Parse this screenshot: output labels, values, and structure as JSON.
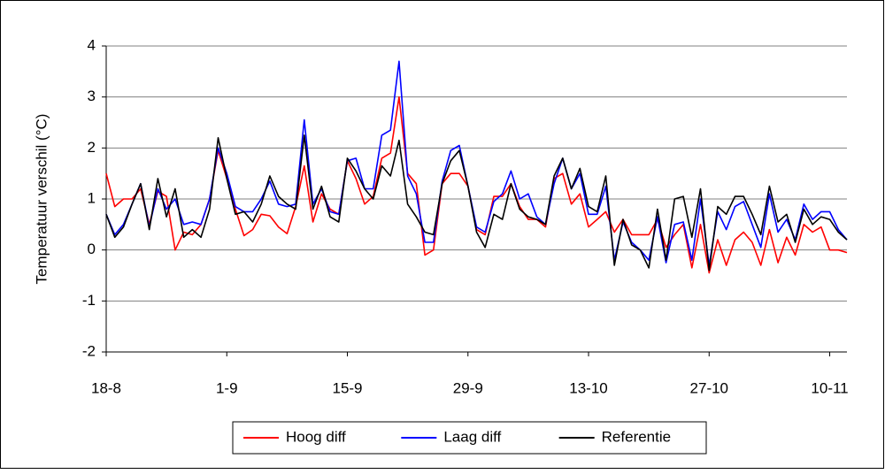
{
  "chart_data": {
    "type": "line",
    "y_label": "Temperatuur verschil (°C)",
    "categories": [
      "18-8",
      null,
      null,
      null,
      null,
      null,
      null,
      null,
      null,
      null,
      null,
      null,
      null,
      null,
      "1-9",
      null,
      null,
      null,
      null,
      null,
      null,
      null,
      null,
      null,
      null,
      null,
      null,
      null,
      "15-9",
      null,
      null,
      null,
      null,
      null,
      null,
      null,
      null,
      null,
      null,
      null,
      null,
      null,
      "29-9",
      null,
      null,
      null,
      null,
      null,
      null,
      null,
      null,
      null,
      null,
      null,
      null,
      null,
      "13-10",
      null,
      null,
      null,
      null,
      null,
      null,
      null,
      null,
      null,
      null,
      null,
      null,
      null,
      "27-10",
      null,
      null,
      null,
      null,
      null,
      null,
      null,
      null,
      null,
      null,
      null,
      null,
      null,
      "10-11",
      null,
      null
    ],
    "series": [
      {
        "name": "Hoog diff",
        "color": "#ff0000",
        "values": [
          1.5,
          0.85,
          1.0,
          1.0,
          1.2,
          0.5,
          1.15,
          1.05,
          0.0,
          0.35,
          0.3,
          0.5,
          1.0,
          1.95,
          1.4,
          0.8,
          0.28,
          0.4,
          0.7,
          0.67,
          0.45,
          0.32,
          0.85,
          1.65,
          0.55,
          1.1,
          0.8,
          0.7,
          1.75,
          1.4,
          0.9,
          1.05,
          1.8,
          1.9,
          3.0,
          1.5,
          1.3,
          -0.1,
          0.0,
          1.3,
          1.5,
          1.5,
          1.25,
          0.4,
          0.3,
          1.05,
          1.05,
          1.3,
          0.85,
          0.6,
          0.6,
          0.45,
          1.4,
          1.5,
          0.9,
          1.1,
          0.45,
          0.6,
          0.75,
          0.35,
          0.6,
          0.3,
          0.3,
          0.3,
          0.6,
          0.05,
          0.3,
          0.5,
          -0.35,
          0.5,
          -0.45,
          0.2,
          -0.3,
          0.2,
          0.35,
          0.15,
          -0.3,
          0.4,
          -0.25,
          0.25,
          -0.1,
          0.5,
          0.35,
          0.45,
          0.0,
          0.0,
          -0.05
        ]
      },
      {
        "name": "Laag diff",
        "color": "#0000ff",
        "values": [
          0.7,
          0.3,
          0.5,
          0.9,
          1.3,
          0.45,
          1.2,
          0.8,
          1.0,
          0.5,
          0.55,
          0.5,
          1.0,
          2.0,
          1.5,
          0.85,
          0.75,
          0.75,
          1.0,
          1.35,
          0.9,
          0.85,
          0.9,
          2.55,
          0.9,
          1.2,
          0.75,
          0.7,
          1.75,
          1.8,
          1.2,
          1.2,
          2.25,
          2.35,
          3.7,
          1.45,
          1.1,
          0.15,
          0.15,
          1.35,
          1.95,
          2.05,
          1.25,
          0.45,
          0.35,
          0.95,
          1.1,
          1.55,
          1.0,
          1.1,
          0.65,
          0.5,
          1.3,
          1.8,
          1.2,
          1.5,
          0.7,
          0.7,
          1.25,
          -0.2,
          0.55,
          0.15,
          0.0,
          -0.2,
          0.65,
          -0.25,
          0.5,
          0.55,
          -0.2,
          1.0,
          -0.3,
          0.75,
          0.4,
          0.85,
          0.95,
          0.5,
          0.05,
          1.1,
          0.35,
          0.6,
          0.2,
          0.9,
          0.6,
          0.75,
          0.75,
          0.4,
          0.2
        ]
      },
      {
        "name": "Referentie",
        "color": "#000000",
        "values": [
          0.7,
          0.25,
          0.45,
          0.9,
          1.3,
          0.4,
          1.4,
          0.65,
          1.2,
          0.25,
          0.4,
          0.25,
          0.8,
          2.2,
          1.4,
          0.7,
          0.75,
          0.55,
          0.9,
          1.45,
          1.05,
          0.9,
          0.8,
          2.25,
          0.8,
          1.25,
          0.65,
          0.55,
          1.8,
          1.55,
          1.2,
          1.0,
          1.65,
          1.45,
          2.15,
          0.9,
          0.65,
          0.35,
          0.3,
          1.3,
          1.75,
          1.95,
          1.25,
          0.35,
          0.05,
          0.7,
          0.6,
          1.3,
          0.8,
          0.65,
          0.6,
          0.5,
          1.45,
          1.8,
          1.2,
          1.6,
          0.85,
          0.75,
          1.45,
          -0.3,
          0.6,
          0.1,
          0.0,
          -0.35,
          0.8,
          -0.2,
          1.0,
          1.05,
          0.25,
          1.2,
          -0.4,
          0.85,
          0.7,
          1.05,
          1.05,
          0.7,
          0.3,
          1.25,
          0.55,
          0.7,
          0.15,
          0.8,
          0.5,
          0.65,
          0.6,
          0.35,
          0.2
        ]
      }
    ],
    "ylim": [
      -2,
      4
    ],
    "yticks": [
      -2,
      -1,
      0,
      1,
      2,
      3,
      4
    ],
    "grid": true,
    "legend": "bottom"
  }
}
